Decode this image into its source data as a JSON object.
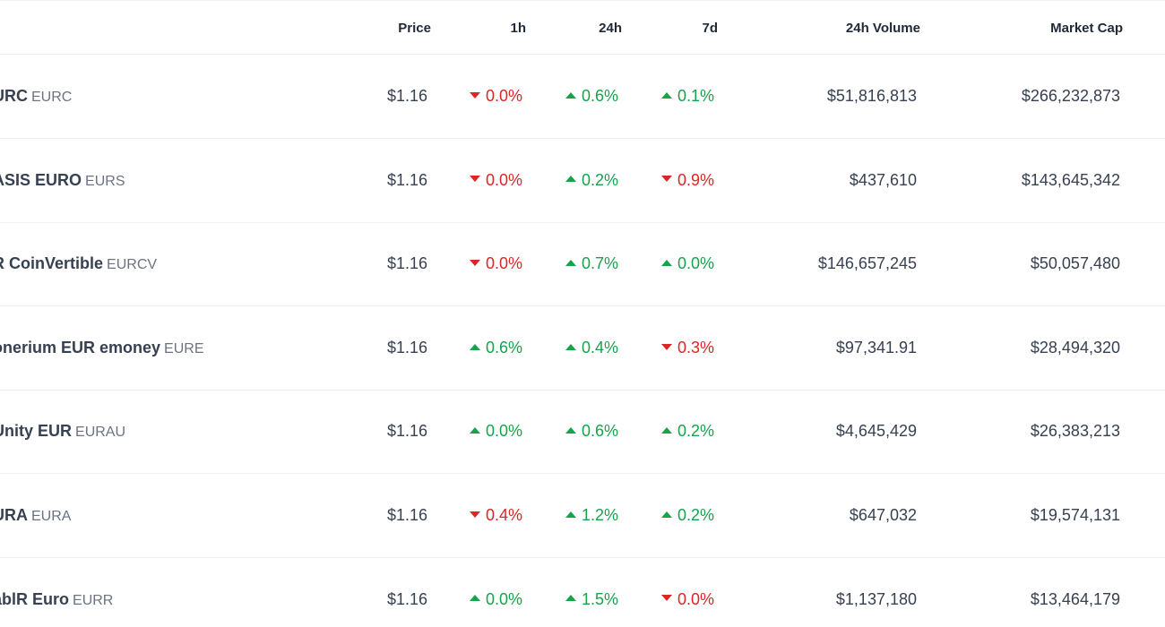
{
  "header": {
    "price": "Price",
    "h1": "1h",
    "h24": "24h",
    "d7": "7d",
    "volume": "24h Volume",
    "market_cap": "Market Cap"
  },
  "colors": {
    "up": "#16a34a",
    "down": "#dc2626"
  },
  "rows": [
    {
      "name": "URC",
      "symbol": "EURC",
      "price": "$1.16",
      "h1": {
        "dir": "down",
        "value": "0.0%"
      },
      "h24": {
        "dir": "up",
        "value": "0.6%"
      },
      "d7": {
        "dir": "up",
        "value": "0.1%"
      },
      "volume": "$51,816,813",
      "market_cap": "$266,232,873"
    },
    {
      "name": "ASIS EURO",
      "symbol": "EURS",
      "price": "$1.16",
      "h1": {
        "dir": "down",
        "value": "0.0%"
      },
      "h24": {
        "dir": "up",
        "value": "0.2%"
      },
      "d7": {
        "dir": "down",
        "value": "0.9%"
      },
      "volume": "$437,610",
      "market_cap": "$143,645,342"
    },
    {
      "name": "R CoinVertible",
      "symbol": "EURCV",
      "price": "$1.16",
      "h1": {
        "dir": "down",
        "value": "0.0%"
      },
      "h24": {
        "dir": "up",
        "value": "0.7%"
      },
      "d7": {
        "dir": "up",
        "value": "0.0%"
      },
      "volume": "$146,657,245",
      "market_cap": "$50,057,480"
    },
    {
      "name": "onerium EUR emoney",
      "symbol": "EURE",
      "price": "$1.16",
      "h1": {
        "dir": "up",
        "value": "0.6%"
      },
      "h24": {
        "dir": "up",
        "value": "0.4%"
      },
      "d7": {
        "dir": "down",
        "value": "0.3%"
      },
      "volume": "$97,341.91",
      "market_cap": "$28,494,320"
    },
    {
      "name": "Unity EUR",
      "symbol": "EURAU",
      "price": "$1.16",
      "h1": {
        "dir": "up",
        "value": "0.0%"
      },
      "h24": {
        "dir": "up",
        "value": "0.6%"
      },
      "d7": {
        "dir": "up",
        "value": "0.2%"
      },
      "volume": "$4,645,429",
      "market_cap": "$26,383,213"
    },
    {
      "name": "URA",
      "symbol": "EURA",
      "price": "$1.16",
      "h1": {
        "dir": "down",
        "value": "0.4%"
      },
      "h24": {
        "dir": "up",
        "value": "1.2%"
      },
      "d7": {
        "dir": "up",
        "value": "0.2%"
      },
      "volume": "$647,032",
      "market_cap": "$19,574,131"
    },
    {
      "name": "ablR Euro",
      "symbol": "EURR",
      "price": "$1.16",
      "h1": {
        "dir": "up",
        "value": "0.0%"
      },
      "h24": {
        "dir": "up",
        "value": "1.5%"
      },
      "d7": {
        "dir": "down",
        "value": "0.0%"
      },
      "volume": "$1,137,180",
      "market_cap": "$13,464,179"
    }
  ]
}
